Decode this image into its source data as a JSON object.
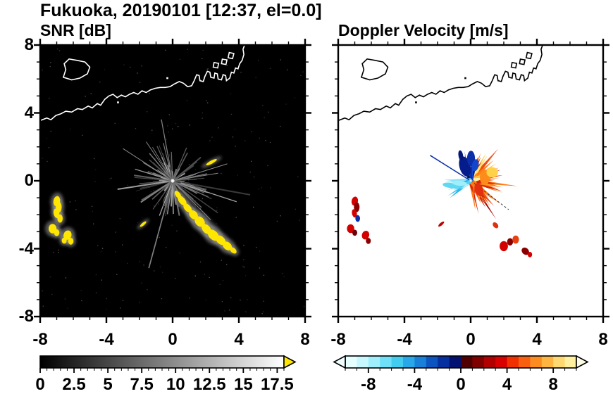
{
  "title": "Fukuoka, 20190101 [12:37, el=0.0]",
  "chart_data": [
    {
      "type": "heatmap",
      "title": "SNR [dB]",
      "xlim": [
        -8,
        8
      ],
      "ylim": [
        -8,
        8
      ],
      "x_tick_values": [
        -8,
        -4,
        0,
        4,
        8
      ],
      "x_tick_labels": [
        "-8",
        "-4",
        "0",
        "4",
        "8"
      ],
      "y_tick_values": [
        8,
        4,
        0,
        -4,
        -8
      ],
      "y_tick_labels": [
        "8",
        "4",
        "0",
        "-4",
        "-8"
      ],
      "background": "#000000",
      "echo_color": "#ffe600",
      "radar_center": [
        0,
        0
      ],
      "echo_cells": [
        [
          -7.0,
          -1.2,
          0.2,
          0.3,
          10
        ],
        [
          -6.88,
          -1.55,
          0.18,
          0.32,
          0
        ],
        [
          -7.02,
          -1.92,
          0.17,
          0.28,
          -12
        ],
        [
          -6.8,
          -2.22,
          0.16,
          0.24,
          0
        ],
        [
          -7.25,
          -2.82,
          0.24,
          0.28,
          0
        ],
        [
          -7.0,
          -3.06,
          0.16,
          0.2,
          0
        ],
        [
          -6.35,
          -3.2,
          0.24,
          0.28,
          18
        ],
        [
          -6.55,
          -3.52,
          0.15,
          0.18,
          0
        ],
        [
          -6.15,
          -3.56,
          0.16,
          0.2,
          0
        ],
        [
          0.32,
          -0.82,
          0.15,
          0.27,
          -35
        ],
        [
          0.57,
          -1.17,
          0.19,
          0.34,
          -40
        ],
        [
          0.9,
          -1.6,
          0.19,
          0.3,
          -42
        ],
        [
          1.26,
          -2.0,
          0.23,
          0.3,
          -42
        ],
        [
          1.64,
          -2.4,
          0.27,
          0.34,
          -42
        ],
        [
          2.04,
          -2.84,
          0.23,
          0.34,
          -42
        ],
        [
          2.46,
          -3.2,
          0.27,
          0.38,
          -45
        ],
        [
          2.9,
          -3.5,
          0.23,
          0.34,
          -48
        ],
        [
          3.3,
          -3.84,
          0.23,
          0.3,
          -48
        ],
        [
          3.66,
          -4.1,
          0.15,
          0.23,
          -48
        ],
        [
          2.35,
          1.1,
          0.36,
          0.09,
          -28
        ],
        [
          -1.78,
          -2.55,
          0.24,
          0.08,
          -40
        ]
      ],
      "colorbar": {
        "min": 0,
        "max": 18,
        "tick_values": [
          0,
          2.5,
          5,
          7.5,
          10,
          12.5,
          15,
          17.5
        ],
        "tick_labels": [
          "0",
          "2.5",
          "5",
          "7.5",
          "10",
          "12.5",
          "15",
          "17.5"
        ],
        "gradient": [
          "#000000",
          "#ffffff"
        ],
        "over_arrow_color": "#ffe600"
      }
    },
    {
      "type": "heatmap",
      "title": "Doppler Velocity [m/s]",
      "xlim": [
        -8,
        8
      ],
      "ylim": [
        -8,
        8
      ],
      "x_tick_values": [
        -8,
        -4,
        0,
        4,
        8
      ],
      "x_tick_labels": [
        "-8",
        "-4",
        "0",
        "4",
        "8"
      ],
      "y_tick_values": [
        8,
        4,
        0,
        -4,
        -8
      ],
      "y_tick_labels": [
        "8",
        "4",
        "0",
        "-4",
        "-8"
      ],
      "background": "#ffffff",
      "radar_center": [
        0,
        0
      ],
      "wedge_colors": {
        "warm": [
          "#fff2a8",
          "#ffe070",
          "#ffc844",
          "#ffa428",
          "#ff7c14",
          "#f04c10",
          "#d42408",
          "#a80000"
        ],
        "navy": [
          "#041678",
          "#0a2fa8",
          "#1246cc",
          "#021050"
        ],
        "cyan": [
          "#bef2fc",
          "#8ce4f8",
          "#55d0f0",
          "#2ab4e8"
        ]
      },
      "echo_cells": [
        [
          -0.35,
          0.85,
          0.33,
          0.6,
          -15,
          "#051d8c"
        ],
        [
          0.02,
          1.32,
          0.24,
          0.45,
          0,
          "#0a2fa8"
        ],
        [
          0.28,
          0.92,
          0.2,
          0.36,
          10,
          "#1246cc"
        ],
        [
          -0.6,
          1.5,
          0.14,
          0.3,
          -10,
          "#041678"
        ],
        [
          -1.15,
          -0.28,
          0.55,
          0.16,
          8,
          "#5fd8f4"
        ],
        [
          -0.68,
          -0.14,
          0.45,
          0.15,
          5,
          "#9feefc"
        ],
        [
          0.5,
          -0.52,
          0.25,
          0.4,
          -20,
          "#e03010"
        ],
        [
          0.85,
          0.2,
          0.3,
          0.45,
          0,
          "#ff8c1a"
        ],
        [
          1.3,
          0.5,
          0.35,
          0.3,
          0,
          "#ffd24a"
        ],
        [
          -7.0,
          -1.2,
          0.19,
          0.27,
          10,
          "#d40000"
        ],
        [
          -6.88,
          -1.55,
          0.17,
          0.29,
          0,
          "#8a0000"
        ],
        [
          -7.02,
          -1.92,
          0.15,
          0.25,
          -12,
          "#d40000"
        ],
        [
          -6.82,
          -2.22,
          0.14,
          0.2,
          0,
          "#0a2fa8"
        ],
        [
          -7.25,
          -2.82,
          0.22,
          0.26,
          0,
          "#d40000"
        ],
        [
          -7.0,
          -3.06,
          0.15,
          0.18,
          0,
          "#70000a"
        ],
        [
          -6.35,
          -3.2,
          0.22,
          0.26,
          18,
          "#d40000"
        ],
        [
          -6.18,
          -3.54,
          0.15,
          0.18,
          0,
          "#8a0000"
        ],
        [
          1.5,
          -2.62,
          0.14,
          0.2,
          -40,
          "#e03010"
        ],
        [
          2.0,
          -3.85,
          0.25,
          0.3,
          0,
          "#d40000"
        ],
        [
          2.38,
          -3.6,
          0.18,
          0.22,
          0,
          "#8a0000"
        ],
        [
          2.72,
          -3.46,
          0.2,
          0.24,
          0,
          "#e84010"
        ],
        [
          3.3,
          -4.15,
          0.2,
          0.24,
          -45,
          "#8a0000"
        ],
        [
          3.58,
          -4.35,
          0.13,
          0.16,
          0,
          "#d40000"
        ],
        [
          -1.78,
          -2.55,
          0.22,
          0.08,
          -40,
          "#c00000"
        ]
      ],
      "colorbar": {
        "min": -10,
        "max": 10,
        "tick_values": [
          -8,
          -4,
          0,
          4,
          8
        ],
        "tick_labels": [
          "-8",
          "-4",
          "0",
          "4",
          "8"
        ],
        "segment_colors": [
          "#e6ffff",
          "#c8f8ff",
          "#9feefc",
          "#6fe0f8",
          "#41ccf0",
          "#28a8e8",
          "#1880d8",
          "#0c54c0",
          "#0630a0",
          "#031270",
          "#500000",
          "#800000",
          "#b00000",
          "#d80000",
          "#f03000",
          "#f86010",
          "#fc8c20",
          "#fdb440",
          "#fed870",
          "#fff0a0"
        ],
        "under_arrow_color": "#effeff",
        "over_arrow_color": "#fffce8"
      }
    }
  ],
  "map": {
    "coastline_main": [
      [
        -8,
        3.55
      ],
      [
        -7.6,
        3.7
      ],
      [
        -7.35,
        3.6
      ],
      [
        -7.05,
        3.85
      ],
      [
        -6.75,
        3.95
      ],
      [
        -6.45,
        4.1
      ],
      [
        -6.1,
        4.05
      ],
      [
        -5.75,
        4.25
      ],
      [
        -5.45,
        4.2
      ],
      [
        -5.1,
        4.4
      ],
      [
        -4.85,
        4.3
      ],
      [
        -4.55,
        4.55
      ],
      [
        -4.35,
        4.45
      ],
      [
        -4.1,
        4.8
      ],
      [
        -3.85,
        5.0
      ],
      [
        -3.6,
        5.1
      ],
      [
        -3.35,
        4.9
      ],
      [
        -3.1,
        5.05
      ],
      [
        -2.85,
        4.95
      ],
      [
        -2.6,
        5.1
      ],
      [
        -2.35,
        5.2
      ],
      [
        -2.1,
        5.1
      ],
      [
        -1.85,
        5.3
      ],
      [
        -1.6,
        5.2
      ],
      [
        -1.35,
        5.35
      ],
      [
        -1.05,
        5.45
      ],
      [
        -0.75,
        5.5
      ],
      [
        -0.45,
        5.5
      ],
      [
        -0.15,
        5.55
      ],
      [
        0.1,
        5.7
      ],
      [
        0.4,
        5.85
      ],
      [
        0.65,
        5.75
      ],
      [
        0.9,
        5.55
      ],
      [
        1.15,
        5.6
      ],
      [
        1.3,
        5.9
      ],
      [
        1.45,
        6.25
      ],
      [
        1.6,
        6.2
      ],
      [
        1.65,
        5.9
      ],
      [
        1.85,
        5.85
      ],
      [
        1.95,
        6.15
      ],
      [
        2.1,
        6.45
      ],
      [
        2.25,
        6.4
      ],
      [
        2.3,
        6.1
      ],
      [
        2.5,
        6.05
      ],
      [
        2.55,
        6.35
      ],
      [
        2.7,
        6.3
      ],
      [
        2.75,
        6.0
      ],
      [
        2.95,
        5.95
      ],
      [
        3.05,
        6.25
      ],
      [
        3.2,
        6.2
      ],
      [
        3.25,
        5.9
      ],
      [
        3.45,
        6.05
      ],
      [
        3.55,
        6.4
      ],
      [
        3.7,
        6.35
      ],
      [
        3.8,
        6.65
      ],
      [
        3.95,
        6.6
      ],
      [
        4.05,
        6.9
      ],
      [
        4.2,
        7.1
      ],
      [
        4.3,
        7.45
      ],
      [
        4.25,
        7.75
      ],
      [
        4.35,
        8.0
      ]
    ],
    "island": [
      [
        -6.6,
        6.1
      ],
      [
        -6.1,
        5.95
      ],
      [
        -5.6,
        6.05
      ],
      [
        -5.15,
        6.3
      ],
      [
        -5.0,
        6.7
      ],
      [
        -5.3,
        7.0
      ],
      [
        -5.8,
        7.1
      ],
      [
        -6.25,
        7.18
      ],
      [
        -6.55,
        6.9
      ],
      [
        -6.45,
        6.55
      ],
      [
        -6.6,
        6.1
      ]
    ],
    "port_blocks": [
      [
        [
          2.45,
          6.7
        ],
        [
          2.72,
          6.65
        ],
        [
          2.78,
          6.92
        ],
        [
          2.5,
          6.97
        ],
        [
          2.45,
          6.7
        ]
      ],
      [
        [
          2.95,
          6.9
        ],
        [
          3.22,
          6.85
        ],
        [
          3.28,
          7.12
        ],
        [
          3.0,
          7.17
        ],
        [
          2.95,
          6.9
        ]
      ],
      [
        [
          3.35,
          7.25
        ],
        [
          3.62,
          7.2
        ],
        [
          3.7,
          7.5
        ],
        [
          3.42,
          7.56
        ],
        [
          3.35,
          7.25
        ]
      ]
    ],
    "marks": [
      [
        -0.32,
        6.05
      ],
      [
        -3.3,
        4.62
      ]
    ]
  }
}
